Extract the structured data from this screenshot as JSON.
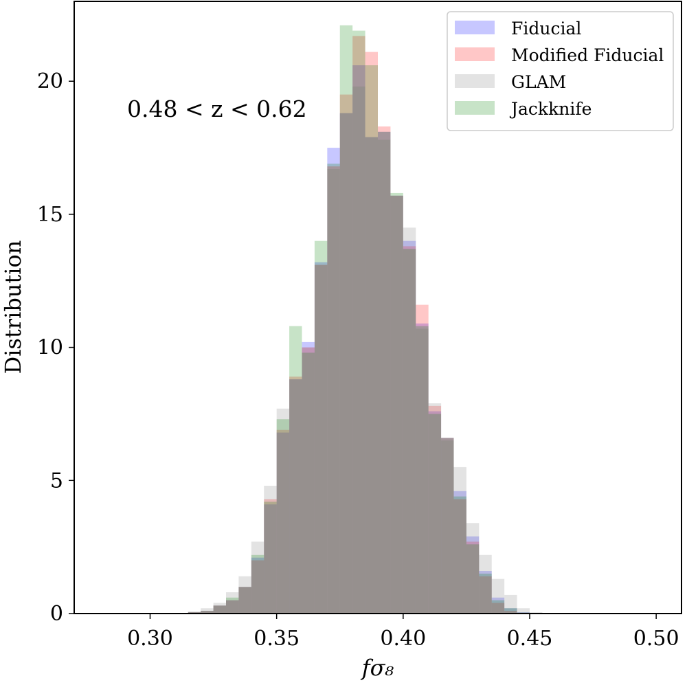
{
  "chart_data": {
    "type": "histogram",
    "xlabel": "fσ₈",
    "ylabel": "Distribution",
    "xlim": [
      0.27,
      0.51
    ],
    "ylim": [
      0,
      23
    ],
    "bin_width": 0.005,
    "xticks": [
      0.3,
      0.35,
      0.4,
      0.45,
      0.5
    ],
    "xtick_labels": [
      "0.30",
      "0.35",
      "0.40",
      "0.45",
      "0.50"
    ],
    "yticks": [
      0,
      5,
      10,
      15,
      20
    ],
    "ytick_labels": [
      "0",
      "5",
      "10",
      "15",
      "20"
    ],
    "annotation": "0.48 < z < 0.62",
    "legend_position": "top-right",
    "bin_lefts": [
      0.315,
      0.32,
      0.325,
      0.33,
      0.335,
      0.34,
      0.345,
      0.35,
      0.355,
      0.36,
      0.365,
      0.37,
      0.375,
      0.38,
      0.385,
      0.39,
      0.395,
      0.4,
      0.405,
      0.41,
      0.415,
      0.42,
      0.425,
      0.43,
      0.435,
      0.44,
      0.445,
      0.45
    ],
    "series": [
      {
        "name": "Fiducial",
        "color": "#0000ff",
        "values": [
          0.05,
          0.1,
          0.3,
          0.5,
          1.0,
          2.1,
          4.1,
          6.8,
          8.8,
          10.2,
          13.2,
          17.5,
          18.8,
          20.6,
          17.9,
          18.1,
          15.7,
          14.0,
          10.9,
          7.6,
          6.6,
          4.6,
          2.9,
          1.6,
          0.6,
          0.2,
          0.05,
          0.02
        ]
      },
      {
        "name": "Modified Fiducial",
        "color": "#ff0000",
        "values": [
          0.05,
          0.1,
          0.3,
          0.5,
          1.0,
          2.0,
          4.3,
          6.9,
          8.9,
          10.0,
          13.1,
          16.8,
          19.5,
          21.7,
          21.1,
          18.3,
          15.7,
          13.8,
          11.6,
          7.8,
          6.6,
          4.3,
          2.7,
          1.4,
          0.4,
          0.1,
          0.03,
          0.01
        ]
      },
      {
        "name": "GLAM",
        "color": "#808080",
        "values": [
          0.08,
          0.2,
          0.4,
          0.8,
          1.4,
          2.7,
          4.8,
          7.7,
          8.8,
          10.0,
          13.1,
          16.7,
          18.8,
          19.8,
          17.9,
          17.8,
          15.7,
          14.5,
          10.7,
          7.9,
          6.5,
          5.5,
          3.4,
          2.2,
          1.3,
          0.7,
          0.2,
          0.05
        ]
      },
      {
        "name": "Jackknife",
        "color": "#008000",
        "values": [
          0.05,
          0.1,
          0.3,
          0.6,
          1.0,
          2.2,
          4.2,
          7.3,
          10.8,
          9.8,
          14.0,
          16.9,
          22.1,
          21.9,
          20.6,
          18.1,
          15.8,
          13.7,
          10.8,
          7.5,
          6.6,
          4.4,
          2.6,
          1.5,
          0.5,
          0.2,
          0.04,
          0.01
        ]
      }
    ]
  }
}
